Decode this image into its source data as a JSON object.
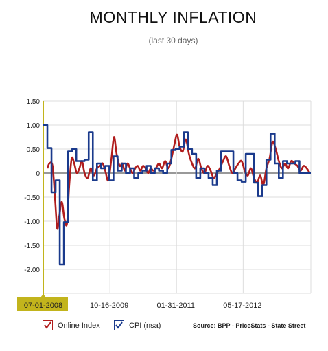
{
  "title": "MONTHLY INFLATION",
  "subtitle": "(last 30 days)",
  "legend": {
    "online_label": "Online Index",
    "cpi_label": "CPI (nsa)",
    "source": "Source: BPP - PriceStats - State Street"
  },
  "colors": {
    "online": "#b01c1c",
    "cpi": "#1a3a8c",
    "highlight": "#c2b41c"
  },
  "chart_data": {
    "type": "line",
    "title": "MONTHLY INFLATION",
    "subtitle": "(last 30 days)",
    "ylim": [
      -2.5,
      1.5
    ],
    "yticks": [
      1.5,
      1.0,
      0.5,
      0,
      -0.5,
      -1.0,
      -1.5,
      -2.0
    ],
    "ytick_labels": [
      "1.50",
      "1.00",
      "0.50",
      "0",
      "-0.50",
      "-1.00",
      "-1.50",
      "-2.00"
    ],
    "xlim": [
      2008.5,
      2013.68
    ],
    "xticks": [
      2008.5,
      2009.79,
      2011.08,
      2012.37
    ],
    "xtick_labels": [
      "07-01-2008",
      "10-16-2009",
      "01-31-2011",
      "05-17-2012"
    ],
    "highlighted_tick": "07-01-2008",
    "grid": true,
    "legend_position": "bottom",
    "series": [
      {
        "name": "Online Index",
        "color": "#b01c1c",
        "style": "smooth",
        "points": [
          [
            2008.58,
            0.1
          ],
          [
            2008.62,
            0.2
          ],
          [
            2008.68,
            0.15
          ],
          [
            2008.73,
            -0.55
          ],
          [
            2008.77,
            -1.15
          ],
          [
            2008.81,
            -0.9
          ],
          [
            2008.86,
            -0.6
          ],
          [
            2008.91,
            -0.95
          ],
          [
            2008.96,
            -1.05
          ],
          [
            2009.0,
            -0.3
          ],
          [
            2009.05,
            0.3
          ],
          [
            2009.1,
            0.2
          ],
          [
            2009.15,
            0.0
          ],
          [
            2009.2,
            0.1
          ],
          [
            2009.25,
            0.25
          ],
          [
            2009.3,
            0.0
          ],
          [
            2009.36,
            -0.1
          ],
          [
            2009.42,
            0.1
          ],
          [
            2009.48,
            -0.05
          ],
          [
            2009.54,
            0.1
          ],
          [
            2009.6,
            0.15
          ],
          [
            2009.65,
            0.2
          ],
          [
            2009.7,
            0.05
          ],
          [
            2009.76,
            -0.15
          ],
          [
            2009.82,
            0.3
          ],
          [
            2009.87,
            0.75
          ],
          [
            2009.92,
            0.4
          ],
          [
            2009.98,
            0.15
          ],
          [
            2010.03,
            0.2
          ],
          [
            2010.08,
            0.05
          ],
          [
            2010.13,
            0.2
          ],
          [
            2010.18,
            0.1
          ],
          [
            2010.23,
            0.0
          ],
          [
            2010.28,
            0.1
          ],
          [
            2010.33,
            0.15
          ],
          [
            2010.38,
            0.05
          ],
          [
            2010.43,
            0.15
          ],
          [
            2010.48,
            0.1
          ],
          [
            2010.53,
            0.0
          ],
          [
            2010.58,
            0.1
          ],
          [
            2010.63,
            0.05
          ],
          [
            2010.68,
            0.1
          ],
          [
            2010.74,
            0.2
          ],
          [
            2010.8,
            0.1
          ],
          [
            2010.86,
            0.25
          ],
          [
            2010.92,
            0.1
          ],
          [
            2010.98,
            0.3
          ],
          [
            2011.04,
            0.6
          ],
          [
            2011.09,
            0.8
          ],
          [
            2011.14,
            0.55
          ],
          [
            2011.2,
            0.45
          ],
          [
            2011.26,
            0.7
          ],
          [
            2011.32,
            0.4
          ],
          [
            2011.38,
            0.2
          ],
          [
            2011.44,
            0.1
          ],
          [
            2011.5,
            0.3
          ],
          [
            2011.56,
            0.1
          ],
          [
            2011.62,
            0.0
          ],
          [
            2011.68,
            0.15
          ],
          [
            2011.74,
            0.05
          ],
          [
            2011.8,
            -0.1
          ],
          [
            2011.86,
            0.0
          ],
          [
            2011.92,
            0.1
          ],
          [
            2011.98,
            0.25
          ],
          [
            2012.04,
            0.35
          ],
          [
            2012.1,
            0.15
          ],
          [
            2012.16,
            0.0
          ],
          [
            2012.22,
            0.1
          ],
          [
            2012.28,
            0.2
          ],
          [
            2012.34,
            0.25
          ],
          [
            2012.4,
            0.05
          ],
          [
            2012.46,
            -0.05
          ],
          [
            2012.52,
            0.1
          ],
          [
            2012.58,
            -0.1
          ],
          [
            2012.64,
            -0.2
          ],
          [
            2012.7,
            -0.05
          ],
          [
            2012.76,
            -0.25
          ],
          [
            2012.82,
            0.1
          ],
          [
            2012.88,
            0.3
          ],
          [
            2012.94,
            0.65
          ],
          [
            2013.0,
            0.5
          ],
          [
            2013.06,
            0.25
          ],
          [
            2013.12,
            0.1
          ],
          [
            2013.18,
            0.2
          ],
          [
            2013.24,
            0.1
          ],
          [
            2013.3,
            0.25
          ],
          [
            2013.36,
            0.2
          ],
          [
            2013.42,
            0.15
          ],
          [
            2013.48,
            0.05
          ],
          [
            2013.54,
            0.15
          ],
          [
            2013.6,
            0.1
          ],
          [
            2013.66,
            0.0
          ]
        ]
      },
      {
        "name": "CPI (nsa)",
        "color": "#1a3a8c",
        "style": "step",
        "points": [
          [
            2008.5,
            1.0
          ],
          [
            2008.58,
            0.52
          ],
          [
            2008.66,
            -0.4
          ],
          [
            2008.74,
            -0.15
          ],
          [
            2008.82,
            -1.9
          ],
          [
            2008.9,
            -1.02
          ],
          [
            2008.98,
            0.45
          ],
          [
            2009.06,
            0.5
          ],
          [
            2009.14,
            0.25
          ],
          [
            2009.22,
            0.25
          ],
          [
            2009.3,
            0.28
          ],
          [
            2009.38,
            0.85
          ],
          [
            2009.46,
            -0.15
          ],
          [
            2009.54,
            0.2
          ],
          [
            2009.62,
            0.1
          ],
          [
            2009.7,
            0.15
          ],
          [
            2009.78,
            -0.15
          ],
          [
            2009.86,
            0.35
          ],
          [
            2009.94,
            0.05
          ],
          [
            2010.02,
            0.2
          ],
          [
            2010.1,
            0.0
          ],
          [
            2010.18,
            0.1
          ],
          [
            2010.26,
            -0.1
          ],
          [
            2010.34,
            0.0
          ],
          [
            2010.42,
            0.05
          ],
          [
            2010.5,
            0.15
          ],
          [
            2010.58,
            0.0
          ],
          [
            2010.66,
            0.1
          ],
          [
            2010.74,
            0.05
          ],
          [
            2010.82,
            0.0
          ],
          [
            2010.9,
            0.2
          ],
          [
            2010.98,
            0.48
          ],
          [
            2011.06,
            0.5
          ],
          [
            2011.14,
            0.55
          ],
          [
            2011.22,
            0.85
          ],
          [
            2011.3,
            0.5
          ],
          [
            2011.38,
            0.4
          ],
          [
            2011.46,
            -0.1
          ],
          [
            2011.54,
            0.1
          ],
          [
            2011.62,
            0.0
          ],
          [
            2011.7,
            -0.1
          ],
          [
            2011.78,
            -0.25
          ],
          [
            2011.86,
            0.05
          ],
          [
            2011.94,
            0.45
          ],
          [
            2012.02,
            0.45
          ],
          [
            2012.1,
            0.45
          ],
          [
            2012.18,
            0.0
          ],
          [
            2012.26,
            -0.15
          ],
          [
            2012.34,
            -0.18
          ],
          [
            2012.42,
            0.4
          ],
          [
            2012.5,
            0.4
          ],
          [
            2012.58,
            -0.2
          ],
          [
            2012.66,
            -0.48
          ],
          [
            2012.74,
            -0.25
          ],
          [
            2012.82,
            0.28
          ],
          [
            2012.9,
            0.82
          ],
          [
            2012.98,
            0.2
          ],
          [
            2013.06,
            -0.1
          ],
          [
            2013.14,
            0.25
          ],
          [
            2013.22,
            0.2
          ],
          [
            2013.3,
            0.2
          ],
          [
            2013.38,
            0.25
          ],
          [
            2013.46,
            0.0
          ],
          [
            2013.54,
            0.0
          ],
          [
            2013.62,
            0.0
          ]
        ]
      }
    ]
  }
}
